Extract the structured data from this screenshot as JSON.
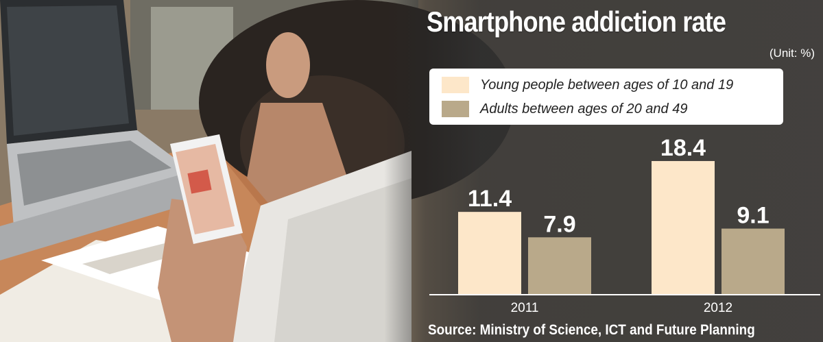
{
  "colors": {
    "young": "#fde7c9",
    "adults": "#b9a98a"
  },
  "chart_data": {
    "type": "bar",
    "title": "Smartphone addiction rate",
    "unit": "(Unit: %)",
    "categories": [
      "2011",
      "2012"
    ],
    "series": [
      {
        "name": "Young people between ages of 10 and 19",
        "values": [
          11.4,
          18.4
        ]
      },
      {
        "name": "Adults between ages of 20 and 49",
        "values": [
          7.9,
          9.1
        ]
      }
    ],
    "ylim": [
      0,
      20
    ],
    "grid": false,
    "legend": "top",
    "source": "Source: Ministry of Science, ICT and Future Planning"
  }
}
